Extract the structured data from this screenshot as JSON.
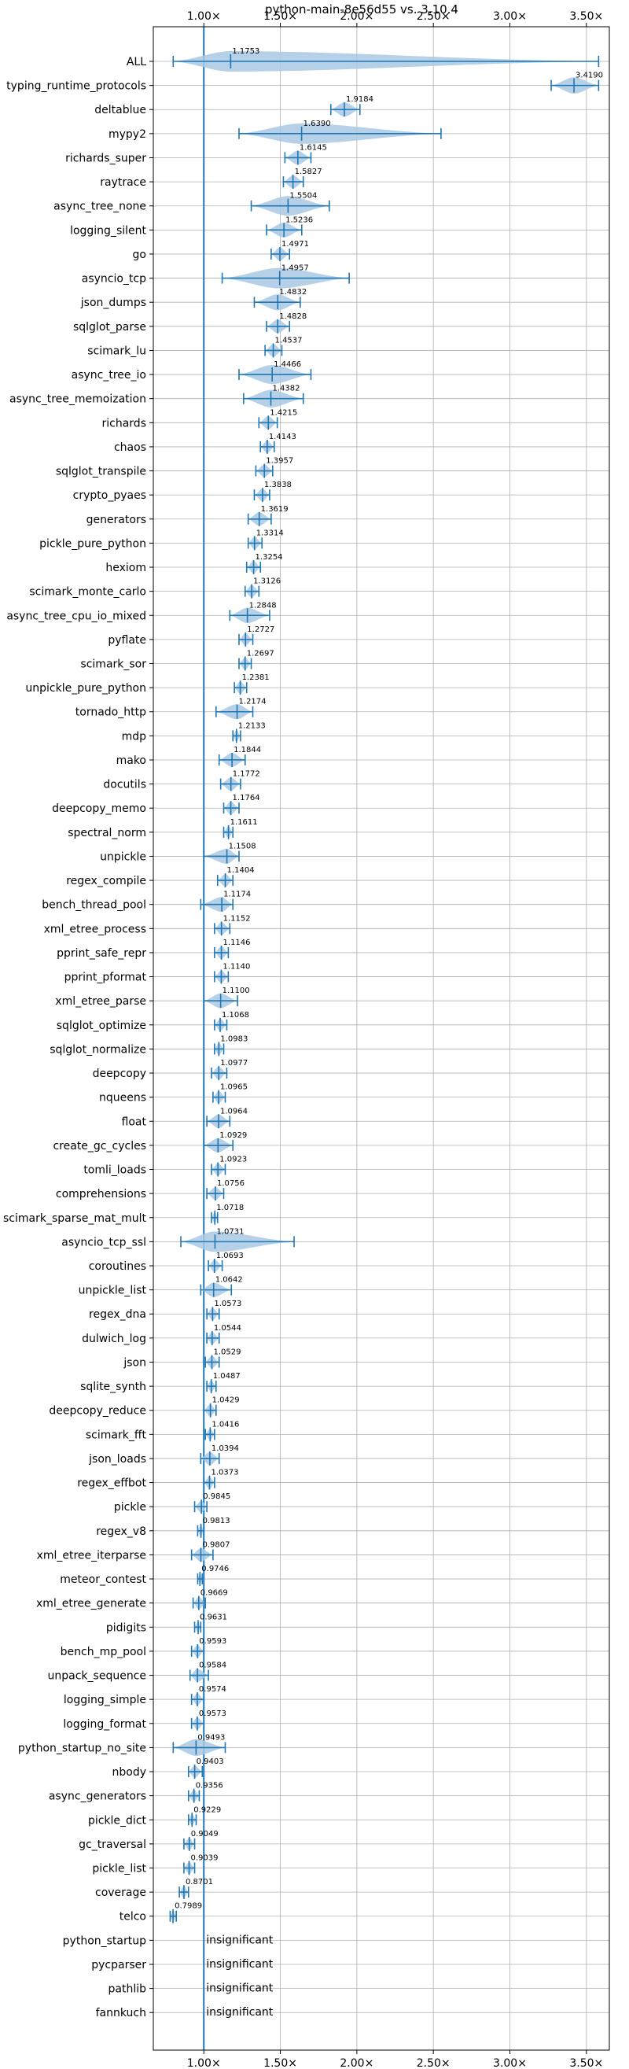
{
  "chart_data": {
    "type": "violin",
    "title": "python-main-8e56d55 vs. 3.10.4",
    "xlabel": "",
    "ylabel": "",
    "xlim": [
      0.67,
      3.65
    ],
    "xticks": [
      {
        "value": 1.0,
        "label": "1.00×"
      },
      {
        "value": 1.5,
        "label": "1.50×"
      },
      {
        "value": 2.0,
        "label": "2.00×"
      },
      {
        "value": 2.5,
        "label": "2.50×"
      },
      {
        "value": 3.0,
        "label": "3.00×"
      },
      {
        "value": 3.5,
        "label": "3.50×"
      }
    ],
    "grid": true,
    "reference_line": 1.0,
    "colors": {
      "violin": "#a9c9e3",
      "line": "#1f77b4",
      "grid": "#b0b0b0"
    },
    "benchmarks": [
      {
        "name": "ALL",
        "value": 1.1753,
        "label": "1.1753",
        "min": 0.8,
        "max": 3.58
      },
      {
        "name": "typing_runtime_protocols",
        "value": 3.419,
        "label": "3.4190",
        "min": 3.27,
        "max": 3.58
      },
      {
        "name": "deltablue",
        "value": 1.9184,
        "label": "1.9184",
        "min": 1.83,
        "max": 2.02
      },
      {
        "name": "mypy2",
        "value": 1.639,
        "label": "1.6390",
        "min": 1.23,
        "max": 2.55
      },
      {
        "name": "richards_super",
        "value": 1.6145,
        "label": "1.6145",
        "min": 1.53,
        "max": 1.7
      },
      {
        "name": "raytrace",
        "value": 1.5827,
        "label": "1.5827",
        "min": 1.52,
        "max": 1.65
      },
      {
        "name": "async_tree_none",
        "value": 1.5504,
        "label": "1.5504",
        "min": 1.31,
        "max": 1.82
      },
      {
        "name": "logging_silent",
        "value": 1.5236,
        "label": "1.5236",
        "min": 1.41,
        "max": 1.64
      },
      {
        "name": "go",
        "value": 1.4971,
        "label": "1.4971",
        "min": 1.44,
        "max": 1.56
      },
      {
        "name": "asyncio_tcp",
        "value": 1.4957,
        "label": "1.4957",
        "min": 1.12,
        "max": 1.95
      },
      {
        "name": "json_dumps",
        "value": 1.4832,
        "label": "1.4832",
        "min": 1.33,
        "max": 1.63
      },
      {
        "name": "sqlglot_parse",
        "value": 1.4828,
        "label": "1.4828",
        "min": 1.41,
        "max": 1.56
      },
      {
        "name": "scimark_lu",
        "value": 1.4537,
        "label": "1.4537",
        "min": 1.4,
        "max": 1.51
      },
      {
        "name": "async_tree_io",
        "value": 1.4466,
        "label": "1.4466",
        "min": 1.23,
        "max": 1.7
      },
      {
        "name": "async_tree_memoization",
        "value": 1.4382,
        "label": "1.4382",
        "min": 1.26,
        "max": 1.65
      },
      {
        "name": "richards",
        "value": 1.4215,
        "label": "1.4215",
        "min": 1.36,
        "max": 1.48
      },
      {
        "name": "chaos",
        "value": 1.4143,
        "label": "1.4143",
        "min": 1.37,
        "max": 1.46
      },
      {
        "name": "sqlglot_transpile",
        "value": 1.3957,
        "label": "1.3957",
        "min": 1.34,
        "max": 1.45
      },
      {
        "name": "crypto_pyaes",
        "value": 1.3838,
        "label": "1.3838",
        "min": 1.33,
        "max": 1.43
      },
      {
        "name": "generators",
        "value": 1.3619,
        "label": "1.3619",
        "min": 1.29,
        "max": 1.44
      },
      {
        "name": "pickle_pure_python",
        "value": 1.3314,
        "label": "1.3314",
        "min": 1.29,
        "max": 1.38
      },
      {
        "name": "hexiom",
        "value": 1.3254,
        "label": "1.3254",
        "min": 1.28,
        "max": 1.37
      },
      {
        "name": "scimark_monte_carlo",
        "value": 1.3126,
        "label": "1.3126",
        "min": 1.27,
        "max": 1.36
      },
      {
        "name": "async_tree_cpu_io_mixed",
        "value": 1.2848,
        "label": "1.2848",
        "min": 1.17,
        "max": 1.43
      },
      {
        "name": "pyflate",
        "value": 1.2727,
        "label": "1.2727",
        "min": 1.23,
        "max": 1.32
      },
      {
        "name": "scimark_sor",
        "value": 1.2697,
        "label": "1.2697",
        "min": 1.23,
        "max": 1.31
      },
      {
        "name": "unpickle_pure_python",
        "value": 1.2381,
        "label": "1.2381",
        "min": 1.2,
        "max": 1.28
      },
      {
        "name": "tornado_http",
        "value": 1.2174,
        "label": "1.2174",
        "min": 1.08,
        "max": 1.32
      },
      {
        "name": "mdp",
        "value": 1.2133,
        "label": "1.2133",
        "min": 1.19,
        "max": 1.24
      },
      {
        "name": "mako",
        "value": 1.1844,
        "label": "1.1844",
        "min": 1.1,
        "max": 1.27
      },
      {
        "name": "docutils",
        "value": 1.1772,
        "label": "1.1772",
        "min": 1.11,
        "max": 1.24
      },
      {
        "name": "deepcopy_memo",
        "value": 1.1764,
        "label": "1.1764",
        "min": 1.13,
        "max": 1.23
      },
      {
        "name": "spectral_norm",
        "value": 1.1611,
        "label": "1.1611",
        "min": 1.13,
        "max": 1.19
      },
      {
        "name": "unpickle",
        "value": 1.1508,
        "label": "1.1508",
        "min": 1.0,
        "max": 1.23
      },
      {
        "name": "regex_compile",
        "value": 1.1404,
        "label": "1.1404",
        "min": 1.09,
        "max": 1.19
      },
      {
        "name": "bench_thread_pool",
        "value": 1.1174,
        "label": "1.1174",
        "min": 0.98,
        "max": 1.19
      },
      {
        "name": "xml_etree_process",
        "value": 1.1152,
        "label": "1.1152",
        "min": 1.07,
        "max": 1.17
      },
      {
        "name": "pprint_safe_repr",
        "value": 1.1146,
        "label": "1.1146",
        "min": 1.07,
        "max": 1.16
      },
      {
        "name": "pprint_pformat",
        "value": 1.114,
        "label": "1.1140",
        "min": 1.07,
        "max": 1.16
      },
      {
        "name": "xml_etree_parse",
        "value": 1.11,
        "label": "1.1100",
        "min": 1.0,
        "max": 1.22
      },
      {
        "name": "sqlglot_optimize",
        "value": 1.1068,
        "label": "1.1068",
        "min": 1.07,
        "max": 1.15
      },
      {
        "name": "sqlglot_normalize",
        "value": 1.0983,
        "label": "1.0983",
        "min": 1.07,
        "max": 1.13
      },
      {
        "name": "deepcopy",
        "value": 1.0977,
        "label": "1.0977",
        "min": 1.05,
        "max": 1.15
      },
      {
        "name": "nqueens",
        "value": 1.0965,
        "label": "1.0965",
        "min": 1.06,
        "max": 1.14
      },
      {
        "name": "float",
        "value": 1.0964,
        "label": "1.0964",
        "min": 1.02,
        "max": 1.17
      },
      {
        "name": "create_gc_cycles",
        "value": 1.0929,
        "label": "1.0929",
        "min": 1.0,
        "max": 1.19
      },
      {
        "name": "tomli_loads",
        "value": 1.0923,
        "label": "1.0923",
        "min": 1.05,
        "max": 1.14
      },
      {
        "name": "comprehensions",
        "value": 1.0756,
        "label": "1.0756",
        "min": 1.02,
        "max": 1.13
      },
      {
        "name": "scimark_sparse_mat_mult",
        "value": 1.0718,
        "label": "1.0718",
        "min": 1.05,
        "max": 1.09
      },
      {
        "name": "asyncio_tcp_ssl",
        "value": 1.0731,
        "label": "1.0731",
        "min": 0.85,
        "max": 1.59
      },
      {
        "name": "coroutines",
        "value": 1.0693,
        "label": "1.0693",
        "min": 1.03,
        "max": 1.12
      },
      {
        "name": "unpickle_list",
        "value": 1.0642,
        "label": "1.0642",
        "min": 0.98,
        "max": 1.18
      },
      {
        "name": "regex_dna",
        "value": 1.0573,
        "label": "1.0573",
        "min": 1.02,
        "max": 1.1
      },
      {
        "name": "dulwich_log",
        "value": 1.0544,
        "label": "1.0544",
        "min": 1.02,
        "max": 1.1
      },
      {
        "name": "json",
        "value": 1.0529,
        "label": "1.0529",
        "min": 1.01,
        "max": 1.1
      },
      {
        "name": "sqlite_synth",
        "value": 1.0487,
        "label": "1.0487",
        "min": 1.02,
        "max": 1.08
      },
      {
        "name": "deepcopy_reduce",
        "value": 1.0429,
        "label": "1.0429",
        "min": 1.0,
        "max": 1.08
      },
      {
        "name": "scimark_fft",
        "value": 1.0416,
        "label": "1.0416",
        "min": 1.01,
        "max": 1.07
      },
      {
        "name": "json_loads",
        "value": 1.0394,
        "label": "1.0394",
        "min": 0.98,
        "max": 1.1
      },
      {
        "name": "regex_effbot",
        "value": 1.0373,
        "label": "1.0373",
        "min": 1.0,
        "max": 1.07
      },
      {
        "name": "pickle",
        "value": 0.9845,
        "label": "0.9845",
        "min": 0.94,
        "max": 1.02
      },
      {
        "name": "regex_v8",
        "value": 0.9813,
        "label": "0.9813",
        "min": 0.96,
        "max": 1.0
      },
      {
        "name": "xml_etree_iterparse",
        "value": 0.9807,
        "label": "0.9807",
        "min": 0.92,
        "max": 1.06
      },
      {
        "name": "meteor_contest",
        "value": 0.9746,
        "label": "0.9746",
        "min": 0.96,
        "max": 0.99
      },
      {
        "name": "xml_etree_generate",
        "value": 0.9669,
        "label": "0.9669",
        "min": 0.93,
        "max": 1.01
      },
      {
        "name": "pidigits",
        "value": 0.9631,
        "label": "0.9631",
        "min": 0.94,
        "max": 0.98
      },
      {
        "name": "bench_mp_pool",
        "value": 0.9593,
        "label": "0.9593",
        "min": 0.92,
        "max": 1.0
      },
      {
        "name": "unpack_sequence",
        "value": 0.9584,
        "label": "0.9584",
        "min": 0.91,
        "max": 1.03
      },
      {
        "name": "logging_simple",
        "value": 0.9574,
        "label": "0.9574",
        "min": 0.92,
        "max": 1.0
      },
      {
        "name": "logging_format",
        "value": 0.9573,
        "label": "0.9573",
        "min": 0.92,
        "max": 1.0
      },
      {
        "name": "python_startup_no_site",
        "value": 0.9493,
        "label": "0.9493",
        "min": 0.8,
        "max": 1.14
      },
      {
        "name": "nbody",
        "value": 0.9403,
        "label": "0.9403",
        "min": 0.9,
        "max": 0.99
      },
      {
        "name": "async_generators",
        "value": 0.9356,
        "label": "0.9356",
        "min": 0.9,
        "max": 0.97
      },
      {
        "name": "pickle_dict",
        "value": 0.9229,
        "label": "0.9229",
        "min": 0.9,
        "max": 0.95
      },
      {
        "name": "gc_traversal",
        "value": 0.9049,
        "label": "0.9049",
        "min": 0.87,
        "max": 0.94
      },
      {
        "name": "pickle_list",
        "value": 0.9039,
        "label": "0.9039",
        "min": 0.87,
        "max": 0.94
      },
      {
        "name": "coverage",
        "value": 0.8701,
        "label": "0.8701",
        "min": 0.84,
        "max": 0.9
      },
      {
        "name": "telco",
        "value": 0.7989,
        "label": "0.7989",
        "min": 0.78,
        "max": 0.82
      },
      {
        "name": "python_startup",
        "value": null,
        "label": "insignificant"
      },
      {
        "name": "pycparser",
        "value": null,
        "label": "insignificant"
      },
      {
        "name": "pathlib",
        "value": null,
        "label": "insignificant"
      },
      {
        "name": "fannkuch",
        "value": null,
        "label": "insignificant"
      }
    ]
  }
}
